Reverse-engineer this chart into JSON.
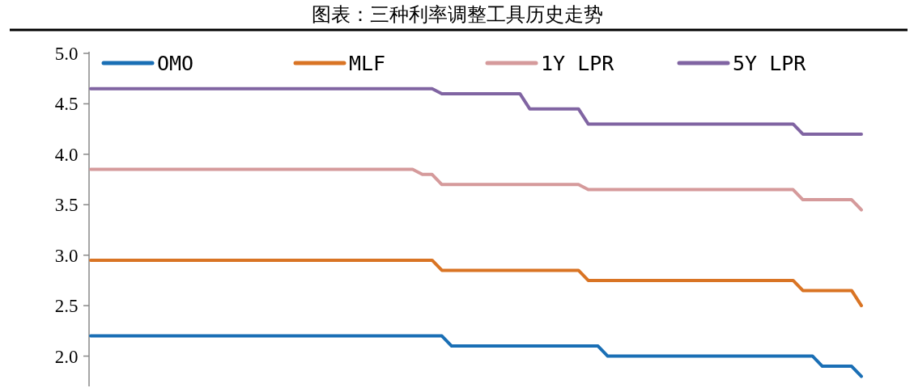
{
  "chart_data": {
    "type": "line",
    "title": "图表：三种利率调整工具历史走势",
    "categories": [
      null,
      null,
      null,
      null,
      null,
      null,
      null,
      null,
      null,
      null,
      null,
      null,
      null,
      null,
      null,
      null,
      null,
      null,
      null,
      null,
      null,
      null,
      null,
      null,
      null,
      null,
      null,
      null,
      null,
      null,
      null,
      null,
      null,
      null,
      null,
      null,
      null,
      null,
      null,
      null,
      null,
      null,
      null,
      null,
      null,
      null,
      null,
      null,
      null,
      null,
      null,
      null,
      null,
      null,
      null,
      null,
      null,
      null,
      null,
      null,
      null,
      null,
      null,
      null,
      null,
      null,
      null,
      null,
      null,
      null,
      null,
      null,
      null,
      null,
      null,
      null,
      null,
      null,
      null,
      null
    ],
    "series": [
      {
        "name": "OMO",
        "color": "#1a6fb5",
        "values": [
          2.2,
          2.2,
          2.2,
          2.2,
          2.2,
          2.2,
          2.2,
          2.2,
          2.2,
          2.2,
          2.2,
          2.2,
          2.2,
          2.2,
          2.2,
          2.2,
          2.2,
          2.2,
          2.2,
          2.2,
          2.2,
          2.2,
          2.2,
          2.2,
          2.2,
          2.2,
          2.2,
          2.2,
          2.2,
          2.2,
          2.2,
          2.2,
          2.2,
          2.2,
          2.2,
          2.2,
          2.2,
          2.1,
          2.1,
          2.1,
          2.1,
          2.1,
          2.1,
          2.1,
          2.1,
          2.1,
          2.1,
          2.1,
          2.1,
          2.1,
          2.1,
          2.1,
          2.1,
          2.0,
          2.0,
          2.0,
          2.0,
          2.0,
          2.0,
          2.0,
          2.0,
          2.0,
          2.0,
          2.0,
          2.0,
          2.0,
          2.0,
          2.0,
          2.0,
          2.0,
          2.0,
          2.0,
          2.0,
          2.0,
          2.0,
          1.9,
          1.9,
          1.9,
          1.9,
          1.8
        ]
      },
      {
        "name": "MLF",
        "color": "#d97424",
        "values": [
          2.95,
          2.95,
          2.95,
          2.95,
          2.95,
          2.95,
          2.95,
          2.95,
          2.95,
          2.95,
          2.95,
          2.95,
          2.95,
          2.95,
          2.95,
          2.95,
          2.95,
          2.95,
          2.95,
          2.95,
          2.95,
          2.95,
          2.95,
          2.95,
          2.95,
          2.95,
          2.95,
          2.95,
          2.95,
          2.95,
          2.95,
          2.95,
          2.95,
          2.95,
          2.95,
          2.95,
          2.85,
          2.85,
          2.85,
          2.85,
          2.85,
          2.85,
          2.85,
          2.85,
          2.85,
          2.85,
          2.85,
          2.85,
          2.85,
          2.85,
          2.85,
          2.75,
          2.75,
          2.75,
          2.75,
          2.75,
          2.75,
          2.75,
          2.75,
          2.75,
          2.75,
          2.75,
          2.75,
          2.75,
          2.75,
          2.75,
          2.75,
          2.75,
          2.75,
          2.75,
          2.75,
          2.75,
          2.75,
          2.65,
          2.65,
          2.65,
          2.65,
          2.65,
          2.65,
          2.5
        ]
      },
      {
        "name": "1Y LPR",
        "color": "#d59a9b",
        "values": [
          3.85,
          3.85,
          3.85,
          3.85,
          3.85,
          3.85,
          3.85,
          3.85,
          3.85,
          3.85,
          3.85,
          3.85,
          3.85,
          3.85,
          3.85,
          3.85,
          3.85,
          3.85,
          3.85,
          3.85,
          3.85,
          3.85,
          3.85,
          3.85,
          3.85,
          3.85,
          3.85,
          3.85,
          3.85,
          3.85,
          3.85,
          3.85,
          3.85,
          3.85,
          3.8,
          3.8,
          3.7,
          3.7,
          3.7,
          3.7,
          3.7,
          3.7,
          3.7,
          3.7,
          3.7,
          3.7,
          3.7,
          3.7,
          3.7,
          3.7,
          3.7,
          3.65,
          3.65,
          3.65,
          3.65,
          3.65,
          3.65,
          3.65,
          3.65,
          3.65,
          3.65,
          3.65,
          3.65,
          3.65,
          3.65,
          3.65,
          3.65,
          3.65,
          3.65,
          3.65,
          3.65,
          3.65,
          3.65,
          3.55,
          3.55,
          3.55,
          3.55,
          3.55,
          3.55,
          3.45
        ]
      },
      {
        "name": "5Y LPR",
        "color": "#8064a2",
        "values": [
          4.65,
          4.65,
          4.65,
          4.65,
          4.65,
          4.65,
          4.65,
          4.65,
          4.65,
          4.65,
          4.65,
          4.65,
          4.65,
          4.65,
          4.65,
          4.65,
          4.65,
          4.65,
          4.65,
          4.65,
          4.65,
          4.65,
          4.65,
          4.65,
          4.65,
          4.65,
          4.65,
          4.65,
          4.65,
          4.65,
          4.65,
          4.65,
          4.65,
          4.65,
          4.65,
          4.65,
          4.6,
          4.6,
          4.6,
          4.6,
          4.6,
          4.6,
          4.6,
          4.6,
          4.6,
          4.45,
          4.45,
          4.45,
          4.45,
          4.45,
          4.45,
          4.3,
          4.3,
          4.3,
          4.3,
          4.3,
          4.3,
          4.3,
          4.3,
          4.3,
          4.3,
          4.3,
          4.3,
          4.3,
          4.3,
          4.3,
          4.3,
          4.3,
          4.3,
          4.3,
          4.3,
          4.3,
          4.3,
          4.2,
          4.2,
          4.2,
          4.2,
          4.2,
          4.2,
          4.2
        ]
      }
    ],
    "ylim": [
      1.7,
      5.0
    ],
    "yticks": [
      {
        "value": 2,
        "label": "2.0"
      },
      2.5,
      {
        "value": 3,
        "label": "3.0"
      },
      3.5,
      {
        "value": 4,
        "label": "4.0"
      },
      4.5,
      {
        "value": 5,
        "label": "5.0"
      }
    ],
    "tick_labels": "y",
    "legend": "top"
  }
}
